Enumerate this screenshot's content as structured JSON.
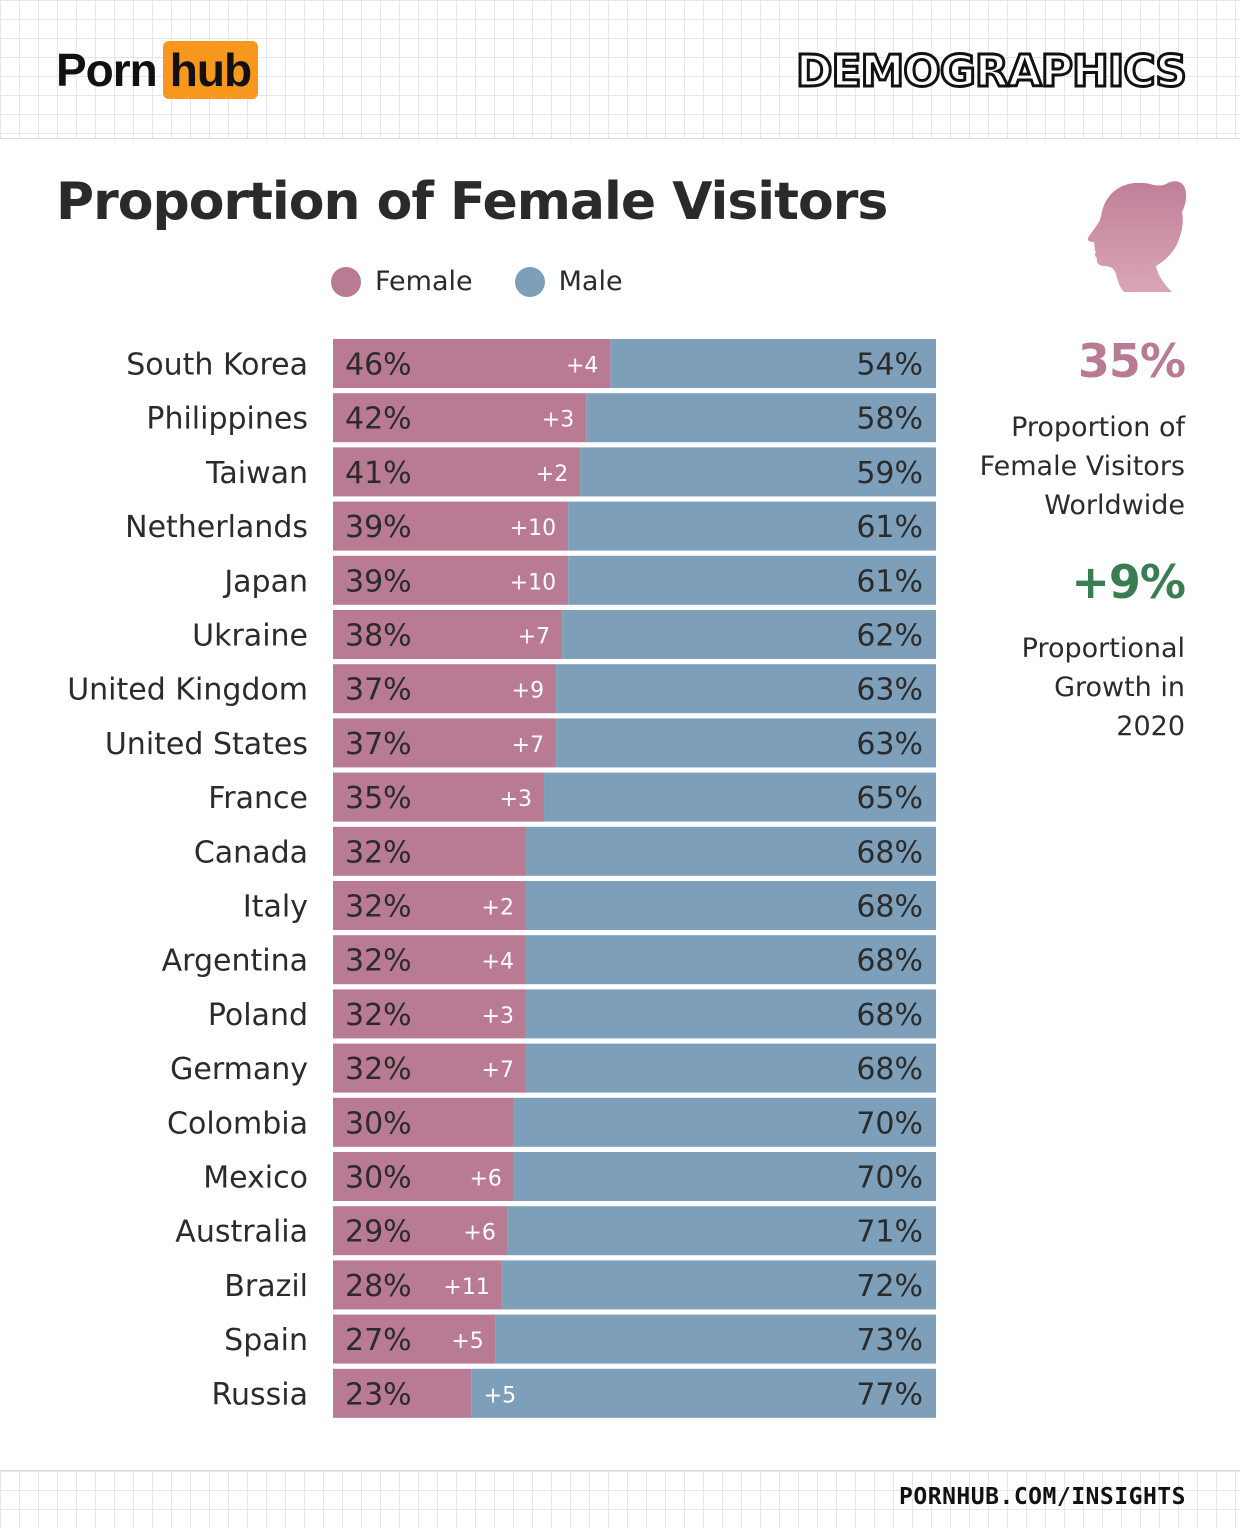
{
  "brand": {
    "logo_left": "Porn",
    "logo_right": "hub",
    "accent": "#f7971d"
  },
  "header": {
    "section": "DEMOGRAPHICS"
  },
  "footer": {
    "url": "PORNHUB.COM/INSIGHTS"
  },
  "sidebar": {
    "worldwide_value": "35%",
    "worldwide_label": "Proportion of Female Visitors Worldwide",
    "growth_value": "+9%",
    "growth_label": "Proportional Growth in 2020",
    "icon": "female-silhouette-icon"
  },
  "colors": {
    "female": "#b97a93",
    "male": "#7d9fba",
    "growth": "#3a7d52",
    "worldwide": "#b97a93"
  },
  "chart_data": {
    "type": "bar",
    "orientation": "horizontal",
    "stacked": true,
    "title": "Proportion of Female Visitors",
    "legend": [
      "Female",
      "Male"
    ],
    "legend_position": "top",
    "xlim": [
      0,
      100
    ],
    "categories": [
      "South Korea",
      "Philippines",
      "Taiwan",
      "Netherlands",
      "Japan",
      "Ukraine",
      "United Kingdom",
      "United States",
      "France",
      "Canada",
      "Italy",
      "Argentina",
      "Poland",
      "Germany",
      "Colombia",
      "Mexico",
      "Australia",
      "Brazil",
      "Spain",
      "Russia"
    ],
    "series": [
      {
        "name": "Female",
        "values": [
          46,
          42,
          41,
          39,
          39,
          38,
          37,
          37,
          35,
          32,
          32,
          32,
          32,
          32,
          30,
          30,
          29,
          28,
          27,
          23
        ]
      },
      {
        "name": "Male",
        "values": [
          54,
          58,
          59,
          61,
          61,
          62,
          63,
          63,
          65,
          68,
          68,
          68,
          68,
          68,
          70,
          70,
          71,
          72,
          73,
          77
        ]
      }
    ],
    "growth": [
      "+4",
      "+3",
      "+2",
      "+10",
      "+10",
      "+7",
      "+9",
      "+7",
      "+3",
      "",
      "+2",
      "+4",
      "+3",
      "+7",
      "",
      "+6",
      "+6",
      "+11",
      "+5",
      "+5"
    ]
  }
}
